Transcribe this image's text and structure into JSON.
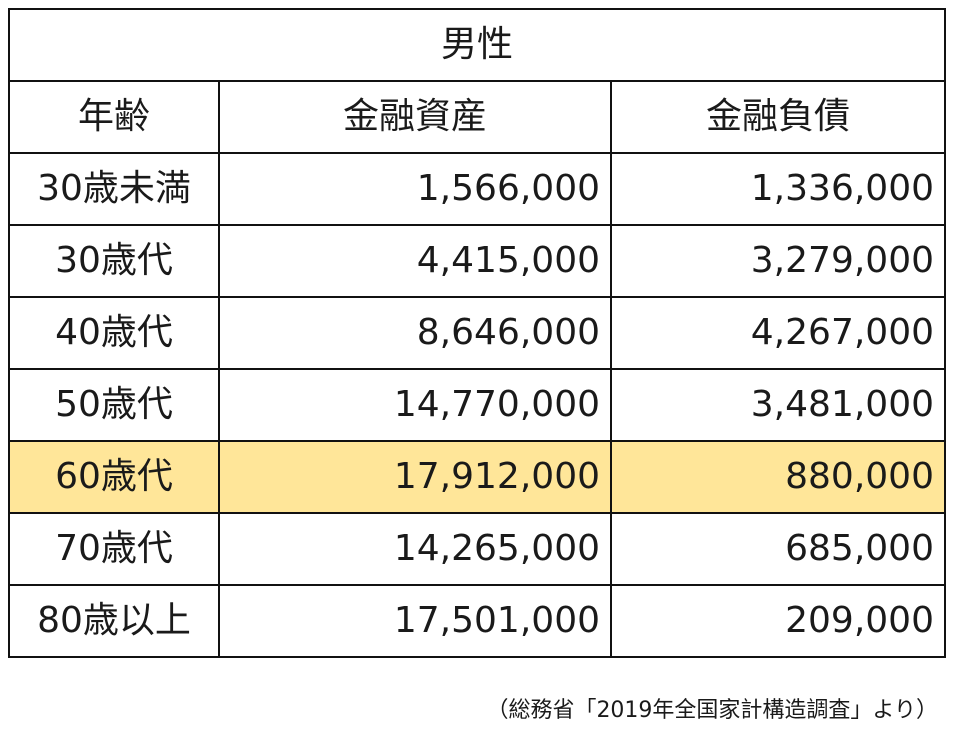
{
  "table": {
    "title": "男性",
    "headers": {
      "age": "年齢",
      "assets": "金融資産",
      "liabilities": "金融負債"
    },
    "rows": [
      {
        "age": "30歳未満",
        "assets": "1,566,000",
        "liabilities": "1,336,000",
        "highlight": false
      },
      {
        "age": "30歳代",
        "assets": "4,415,000",
        "liabilities": "3,279,000",
        "highlight": false
      },
      {
        "age": "40歳代",
        "assets": "8,646,000",
        "liabilities": "4,267,000",
        "highlight": false
      },
      {
        "age": "50歳代",
        "assets": "14,770,000",
        "liabilities": "3,481,000",
        "highlight": false
      },
      {
        "age": "60歳代",
        "assets": "17,912,000",
        "liabilities": "880,000",
        "highlight": true
      },
      {
        "age": "70歳代",
        "assets": "14,265,000",
        "liabilities": "685,000",
        "highlight": false
      },
      {
        "age": "80歳以上",
        "assets": "17,501,000",
        "liabilities": "209,000",
        "highlight": false
      }
    ]
  },
  "source": "（総務省「2019年全国家計構造調査」より）",
  "colors": {
    "highlight": "#ffe699",
    "border": "#111111"
  }
}
